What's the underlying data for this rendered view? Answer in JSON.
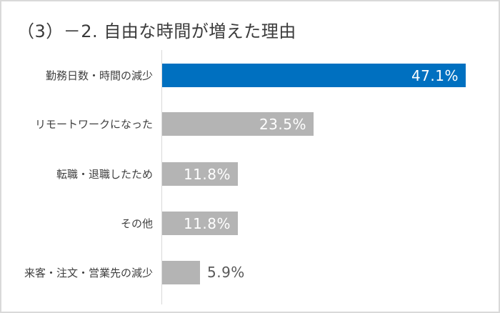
{
  "title": "（3）－2. 自由な時間が増えた理由",
  "colors": {
    "highlight": "#0070c0",
    "default": "#b4b4b4",
    "frame": "#d9d9d9"
  },
  "chart_data": {
    "type": "bar",
    "orientation": "horizontal",
    "title": "（3）－2. 自由な時間が増えた理由",
    "xlabel": "",
    "ylabel": "",
    "categories": [
      "勤務日数・時間の減少",
      "リモートワークになった",
      "転職・退職したため",
      "その他",
      "来客・注文・営業先の減少"
    ],
    "values": [
      47.1,
      23.5,
      11.8,
      11.8,
      5.9
    ],
    "value_labels": [
      "47.1%",
      "23.5%",
      "11.8%",
      "11.8%",
      "5.9%"
    ],
    "unit": "%",
    "bar_colors": [
      "#0070c0",
      "#b4b4b4",
      "#b4b4b4",
      "#b4b4b4",
      "#b4b4b4"
    ],
    "grid": false,
    "legend": null,
    "xlim": [
      0,
      50
    ]
  }
}
